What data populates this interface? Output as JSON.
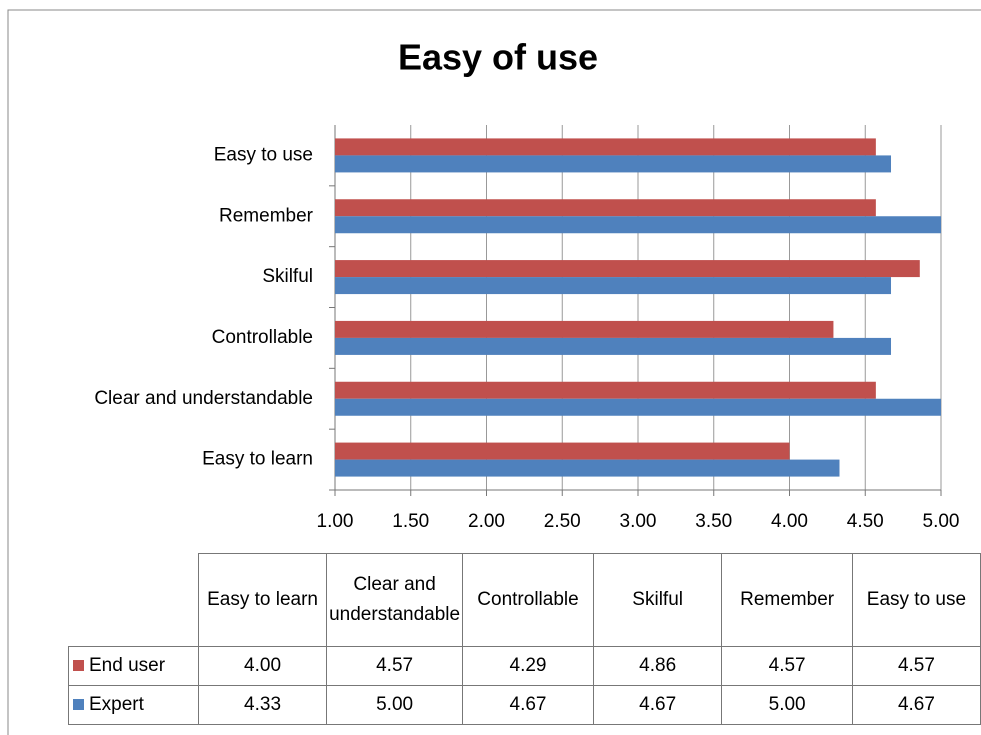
{
  "chart_data": {
    "type": "bar",
    "orientation": "horizontal",
    "title": "Easy of use",
    "categories": [
      "Easy to learn",
      "Clear and understandable",
      "Controllable",
      "Skilful",
      "Remember",
      "Easy to use"
    ],
    "series": [
      {
        "name": "End user",
        "color": "#c0504d",
        "values": [
          4.0,
          4.57,
          4.29,
          4.86,
          4.57,
          4.57
        ],
        "value_labels": [
          "4.00",
          "4.57",
          "4.29",
          "4.86",
          "4.57",
          "4.57"
        ]
      },
      {
        "name": "Expert",
        "color": "#4f81bd",
        "values": [
          4.33,
          5.0,
          4.67,
          4.67,
          5.0,
          4.67
        ],
        "value_labels": [
          "4.33",
          "5.00",
          "4.67",
          "4.67",
          "5.00",
          "4.67"
        ]
      }
    ],
    "xlim": [
      1,
      5
    ],
    "xticks": [
      {
        "value": 1,
        "label": "1.00"
      },
      {
        "value": 1.5,
        "label": "1.50"
      },
      {
        "value": 2,
        "label": "2.00"
      },
      {
        "value": 2.5,
        "label": "2.50"
      },
      {
        "value": 3,
        "label": "3.00"
      },
      {
        "value": 3.5,
        "label": "3.50"
      },
      {
        "value": 4,
        "label": "4.00"
      },
      {
        "value": 4.5,
        "label": "4.50"
      },
      {
        "value": 5,
        "label": "5.00"
      }
    ],
    "grid": true,
    "data_table": true
  }
}
